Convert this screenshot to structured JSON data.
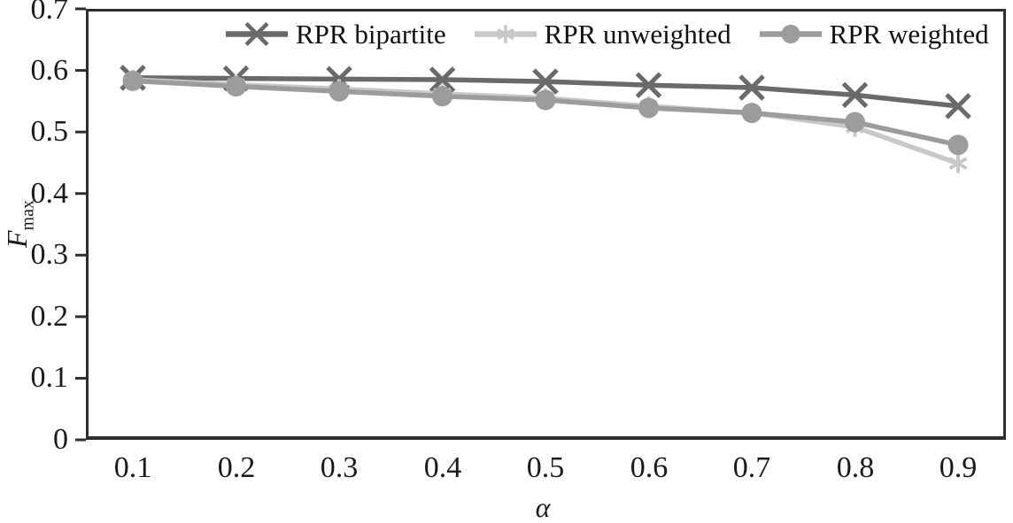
{
  "figure": {
    "background": "#ffffff",
    "axis_color": "#2e2e2e",
    "text_color": "#1a1a1a"
  },
  "chart_data": {
    "type": "line",
    "title": "",
    "xlabel": "α",
    "ylabel": "F",
    "ylabel_sub": "max",
    "xlim": [
      0.055,
      0.945
    ],
    "ylim": [
      0,
      0.7
    ],
    "grid": false,
    "legend_position": "top-inside",
    "xticks": [
      0.1,
      0.2,
      0.3,
      0.4,
      0.5,
      0.6,
      0.7,
      0.8,
      0.9
    ],
    "xtick_labels": [
      "0.1",
      "0.2",
      "0.3",
      "0.4",
      "0.5",
      "0.6",
      "0.7",
      "0.8",
      "0.9"
    ],
    "yticks": [
      0,
      0.1,
      0.2,
      0.3,
      0.4,
      0.5,
      0.6,
      0.7
    ],
    "ytick_labels": [
      "0",
      "0.1",
      "0.2",
      "0.3",
      "0.4",
      "0.5",
      "0.6",
      "0.7"
    ],
    "x": [
      0.1,
      0.2,
      0.3,
      0.4,
      0.5,
      0.6,
      0.7,
      0.8,
      0.9
    ],
    "series": [
      {
        "name": "RPR bipartite",
        "marker": "x",
        "color": "#6a6a6a",
        "values": [
          0.588,
          0.587,
          0.586,
          0.585,
          0.582,
          0.576,
          0.572,
          0.56,
          0.542
        ]
      },
      {
        "name": "RPR unweighted",
        "marker": "asterisk",
        "color": "#c8c8c8",
        "values": [
          0.585,
          0.577,
          0.57,
          0.562,
          0.555,
          0.542,
          0.531,
          0.508,
          0.449
        ]
      },
      {
        "name": "RPR weighted",
        "marker": "circle",
        "color": "#9c9c9c",
        "values": [
          0.583,
          0.574,
          0.566,
          0.558,
          0.552,
          0.539,
          0.531,
          0.516,
          0.479
        ]
      }
    ]
  }
}
